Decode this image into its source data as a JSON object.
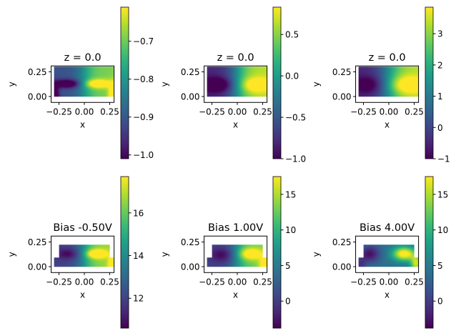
{
  "chart_data": [
    {
      "type": "heatmap",
      "title": "z = 0.0",
      "xlabel": "x",
      "ylabel": "y",
      "xticks": [
        "−0.25",
        "0.00",
        "0.25"
      ],
      "yticks": [
        "0.00",
        "0.25"
      ],
      "domain": "rectangle",
      "colormap": "viridis",
      "clim": [
        -1.01,
        -0.61
      ],
      "colorbar_ticks": [
        -1.0,
        -0.9,
        -0.8,
        -0.7
      ],
      "colorbar_labels": [
        "−1.0",
        "−0.9",
        "−0.8",
        "−0.7"
      ]
    },
    {
      "type": "heatmap",
      "title": "z = 0.0",
      "xlabel": "x",
      "ylabel": "y",
      "xticks": [
        "−0.25",
        "0.00",
        "0.25"
      ],
      "yticks": [
        "0.00",
        "0.25"
      ],
      "domain": "rectangle",
      "colormap": "viridis",
      "clim": [
        -1.0,
        0.83
      ],
      "colorbar_ticks": [
        -1.0,
        -0.5,
        0.0,
        0.5
      ],
      "colorbar_labels": [
        "−1.0",
        "−0.5",
        "0.0",
        "0.5"
      ]
    },
    {
      "type": "heatmap",
      "title": "z = 0.0",
      "xlabel": "x",
      "ylabel": "y",
      "xticks": [
        "−0.25",
        "0.00",
        "0.25"
      ],
      "yticks": [
        "0.00",
        "0.25"
      ],
      "domain": "rectangle",
      "colormap": "viridis",
      "clim": [
        -1.0,
        3.85
      ],
      "colorbar_ticks": [
        -1,
        0,
        1,
        2,
        3
      ],
      "colorbar_labels": [
        "−1",
        "0",
        "1",
        "2",
        "3"
      ]
    },
    {
      "type": "heatmap",
      "title": "Bias -0.50V",
      "xlabel": "x",
      "ylabel": "y",
      "xticks": [
        "−0.25",
        "0.00",
        "0.25"
      ],
      "yticks": [
        "0.00",
        "0.25"
      ],
      "domain": "T-shape",
      "colormap": "viridis",
      "clim": [
        10.6,
        17.7
      ],
      "colorbar_ticks": [
        12,
        14,
        16
      ],
      "colorbar_labels": [
        "12",
        "14",
        "16"
      ]
    },
    {
      "type": "heatmap",
      "title": "Bias 1.00V",
      "xlabel": "x",
      "ylabel": "y",
      "xticks": [
        "−0.25",
        "0.00",
        "0.25"
      ],
      "yticks": [
        "0.00",
        "0.25"
      ],
      "domain": "T-shape",
      "colormap": "viridis",
      "clim": [
        -3.8,
        17.5
      ],
      "colorbar_ticks": [
        0,
        5,
        10,
        15
      ],
      "colorbar_labels": [
        "0",
        "5",
        "10",
        "15"
      ]
    },
    {
      "type": "heatmap",
      "title": "Bias 4.00V",
      "xlabel": "x",
      "ylabel": "y",
      "xticks": [
        "−0.25",
        "0.00",
        "0.25"
      ],
      "yticks": [
        "0.00",
        "0.25"
      ],
      "domain": "T-shape",
      "colormap": "viridis",
      "clim": [
        -3.8,
        17.5
      ],
      "colorbar_ticks": [
        0,
        5,
        10,
        15
      ],
      "colorbar_labels": [
        "0",
        "5",
        "10",
        "15"
      ]
    }
  ]
}
